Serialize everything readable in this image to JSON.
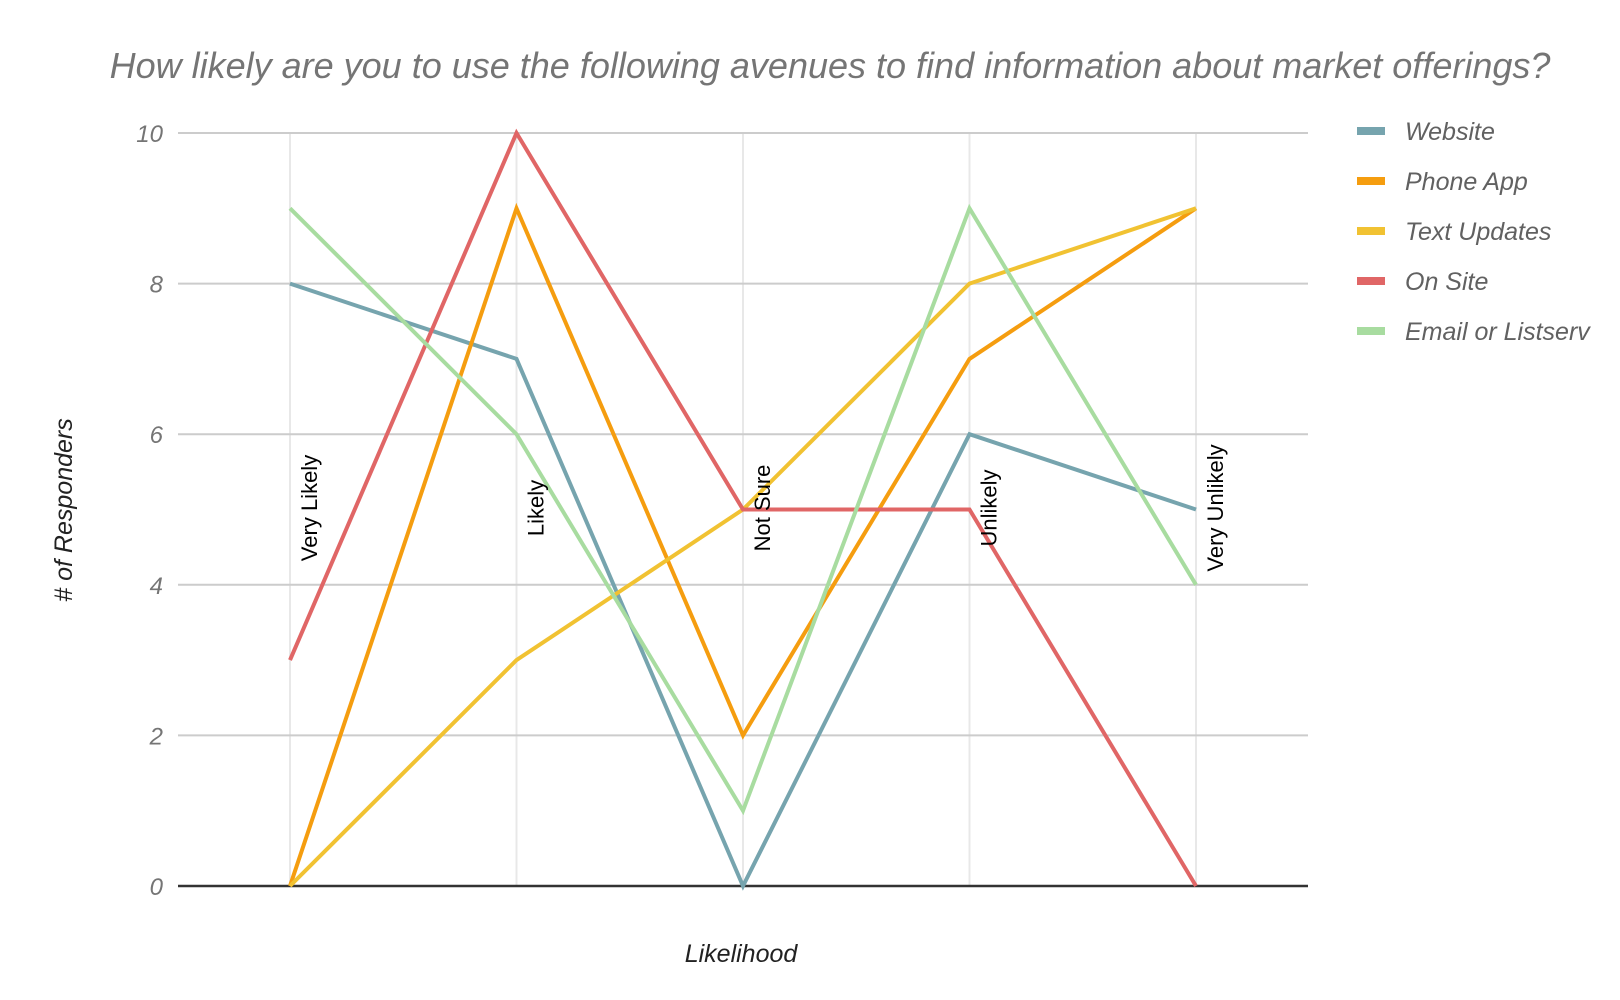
{
  "chart_data": {
    "type": "line",
    "title": "How likely are you to use the following avenues to find information about market offerings?",
    "xlabel": "Likelihood",
    "ylabel": "# of Responders",
    "ylim": [
      0,
      10
    ],
    "yticks": [
      "0",
      "2",
      "4",
      "6",
      "8",
      "10"
    ],
    "categories": [
      "Very Likely",
      "Likely",
      "Not Sure",
      "Unlikely",
      "Very Unlikely"
    ],
    "grid": true,
    "legend_position": "right",
    "series": [
      {
        "name": "Website",
        "color": "#76a4ae",
        "values": [
          8,
          7,
          0,
          6,
          5
        ]
      },
      {
        "name": "Phone App",
        "color": "#f59d0f",
        "values": [
          0,
          9,
          2,
          7,
          9
        ]
      },
      {
        "name": "Text Updates",
        "color": "#f1c232",
        "values": [
          0,
          3,
          5,
          8,
          9
        ]
      },
      {
        "name": "On Site",
        "color": "#e06666",
        "values": [
          3,
          10,
          5,
          5,
          0
        ]
      },
      {
        "name": "Email or Listserv",
        "color": "#a8dca0",
        "values": [
          9,
          6,
          1,
          9,
          4
        ]
      }
    ]
  }
}
